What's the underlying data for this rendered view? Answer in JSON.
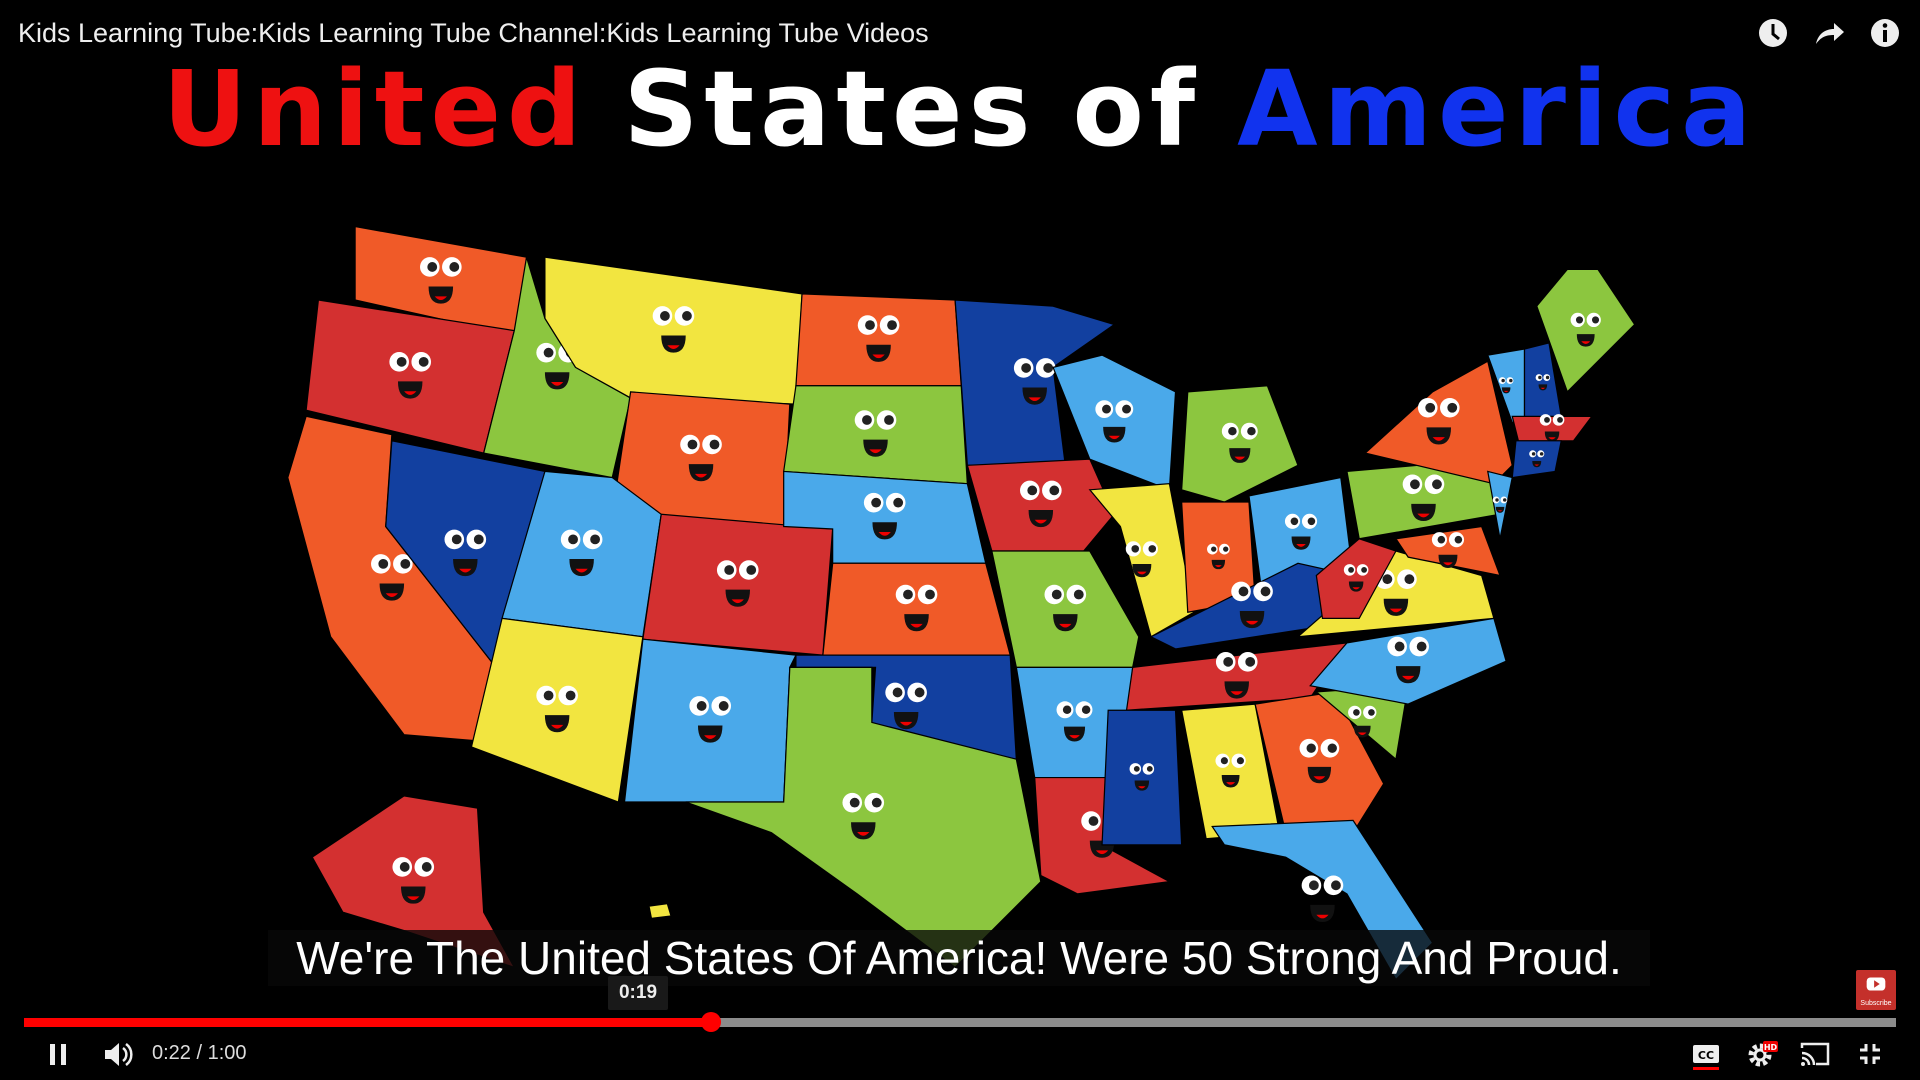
{
  "video": {
    "title": "Kids Learning Tube:Kids Learning Tube Channel:Kids Learning Tube Videos",
    "heading": {
      "word1": "United",
      "word2": "States",
      "word3": "of",
      "word4": "America"
    },
    "heading_colors": {
      "word1": "#ee1111",
      "word2": "#ffffff",
      "word3": "#ffffff",
      "word4": "#1133ee"
    },
    "caption": "We're The United States Of America! Were 50 Strong And Proud.",
    "subscribe_label": "Subscribe"
  },
  "top_icons": [
    "watch-later-icon",
    "share-icon",
    "info-icon"
  ],
  "player": {
    "hover_time": "0:19",
    "current_time": "0:22",
    "duration": "1:00",
    "time_display": "0:22 / 1:00",
    "progress_fraction": 0.367,
    "accent_color": "#ff0000",
    "hd_badge": "HD"
  }
}
